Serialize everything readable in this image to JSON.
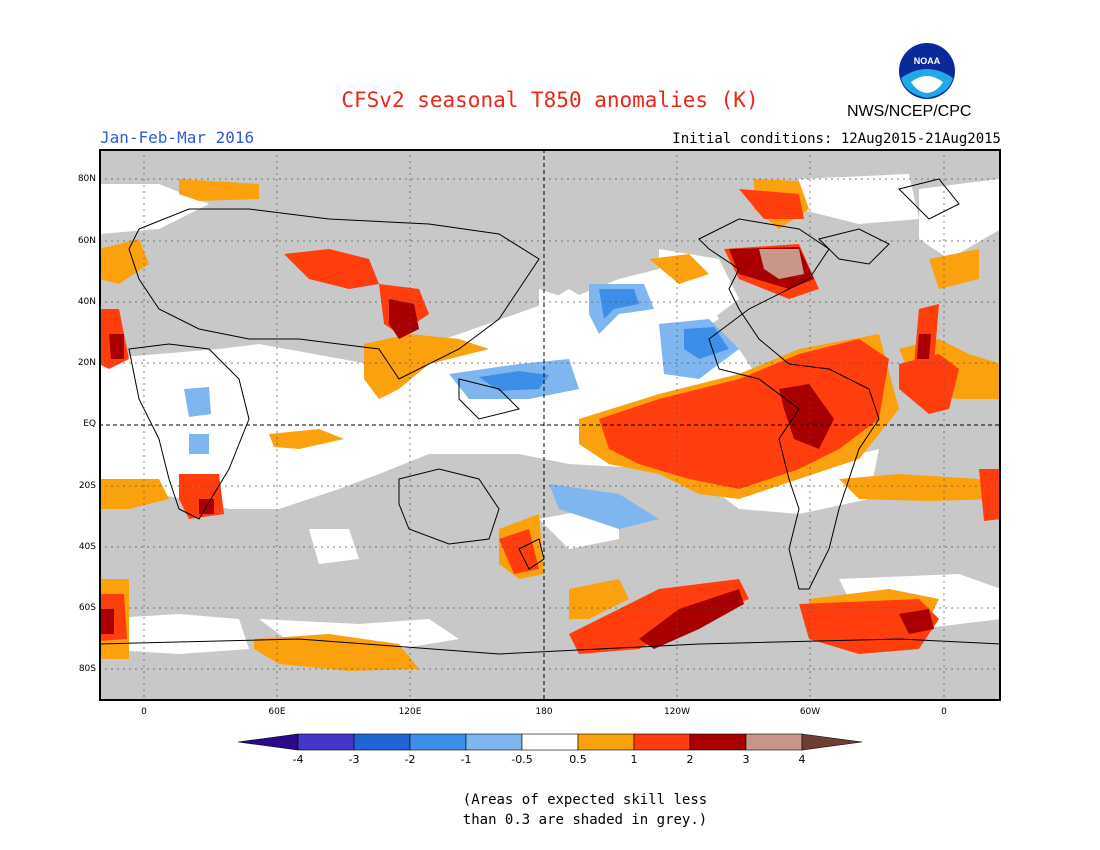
{
  "title": "CFSv2 seasonal T850 anomalies (K)",
  "season": "Jan-Feb-Mar 2016",
  "initial_conditions": "Initial conditions: 12Aug2015-21Aug2015",
  "agency": "NWS/NCEP/CPC",
  "logo_text": "NOAA",
  "lat_labels": [
    "80N",
    "60N",
    "40N",
    "20N",
    "EQ",
    "20S",
    "40S",
    "60S",
    "80S"
  ],
  "lon_labels": [
    "0",
    "60E",
    "120E",
    "180",
    "120W",
    "60W",
    "0"
  ],
  "colorbar": {
    "ticks": [
      "-4",
      "-3",
      "-2",
      "-1",
      "-0.5",
      "0.5",
      "1",
      "2",
      "3",
      "4"
    ],
    "colors": [
      "#2b0a8a",
      "#4535c8",
      "#1f64d4",
      "#3d8ee8",
      "#7fb6f0",
      "#ffffff",
      "#fba10d",
      "#ff3d0d",
      "#a80000",
      "#c9968a",
      "#6e3e33"
    ]
  },
  "note_line1": "(Areas of expected skill less",
  "note_line2": "than 0.3 are shaded in grey.)",
  "legend_colors": {
    "grey_low_skill": "#c8c8c8",
    "neutral": "#ffffff",
    "light_warm": "#fba10d",
    "warm": "#ff3d0d",
    "very_warm": "#a80000",
    "extreme_warm": "#c9968a",
    "light_cool": "#7fb6f0",
    "cool": "#3d8ee8"
  }
}
